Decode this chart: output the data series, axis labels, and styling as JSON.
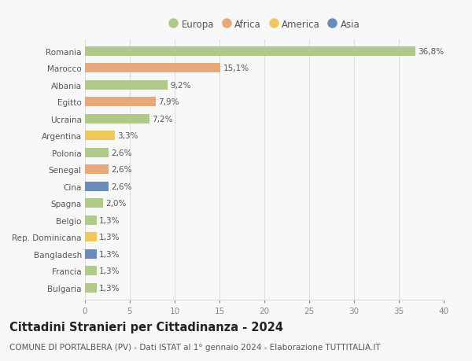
{
  "countries": [
    "Romania",
    "Marocco",
    "Albania",
    "Egitto",
    "Ucraina",
    "Argentina",
    "Polonia",
    "Senegal",
    "Cina",
    "Spagna",
    "Belgio",
    "Rep. Dominicana",
    "Bangladesh",
    "Francia",
    "Bulgaria"
  ],
  "values": [
    36.8,
    15.1,
    9.2,
    7.9,
    7.2,
    3.3,
    2.6,
    2.6,
    2.6,
    2.0,
    1.3,
    1.3,
    1.3,
    1.3,
    1.3
  ],
  "labels": [
    "36,8%",
    "15,1%",
    "9,2%",
    "7,9%",
    "7,2%",
    "3,3%",
    "2,6%",
    "2,6%",
    "2,6%",
    "2,0%",
    "1,3%",
    "1,3%",
    "1,3%",
    "1,3%",
    "1,3%"
  ],
  "continents": [
    "Europa",
    "Africa",
    "Europa",
    "Africa",
    "Europa",
    "America",
    "Europa",
    "Africa",
    "Asia",
    "Europa",
    "Europa",
    "America",
    "Asia",
    "Europa",
    "Europa"
  ],
  "continent_colors": {
    "Europa": "#aec98a",
    "Africa": "#e8a87c",
    "America": "#f0c75e",
    "Asia": "#6b8cba"
  },
  "legend_order": [
    "Europa",
    "Africa",
    "America",
    "Asia"
  ],
  "title": "Cittadini Stranieri per Cittadinanza - 2024",
  "subtitle": "COMUNE DI PORTALBERA (PV) - Dati ISTAT al 1° gennaio 2024 - Elaborazione TUTTITALIA.IT",
  "xlim": [
    0,
    40
  ],
  "xticks": [
    0,
    5,
    10,
    15,
    20,
    25,
    30,
    35,
    40
  ],
  "bg_color": "#f8f8f8",
  "grid_color": "#dddddd",
  "bar_height": 0.55,
  "title_fontsize": 10.5,
  "subtitle_fontsize": 7.5,
  "tick_fontsize": 7.5,
  "label_fontsize": 7.5,
  "legend_fontsize": 8.5
}
